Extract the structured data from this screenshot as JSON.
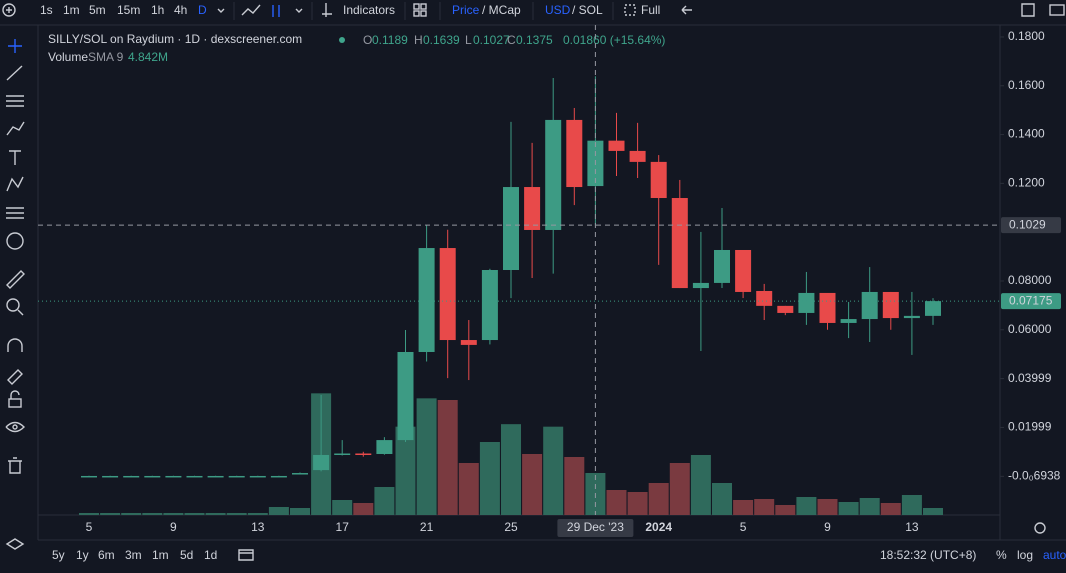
{
  "toolbar": {
    "intervals": [
      "1s",
      "1m",
      "5m",
      "15m",
      "1h",
      "4h",
      "D"
    ],
    "indicators": "Indicators",
    "price": "Price",
    "mcap": "/ MCap",
    "usd": "USD",
    "sol": "/ SOL",
    "full": "Full"
  },
  "legend": {
    "title": "SILLY/SOL on Raydium · 1D · dexscreener.com",
    "o": "O",
    "h": "H",
    "l": "L",
    "c": "C",
    "change": "0.01860 (+15.64%)",
    "volume": "Volume",
    "sma": "SMA 9",
    "sma_value": "4.842M"
  },
  "bottom": {
    "ranges": [
      "5y",
      "1y",
      "6m",
      "3m",
      "1m",
      "5d",
      "1d"
    ],
    "clock": "18:52:32 (UTC+8)",
    "scale_opts": [
      "%",
      "log",
      "auto"
    ]
  },
  "chart_data": {
    "type": "candlestick",
    "up_color": "#3d9b84",
    "down_color": "#e84a4a",
    "volume_up_color": "#2f6a5c",
    "volume_down_color": "#7a3a40",
    "x": [
      "2023-12-05",
      "2023-12-06",
      "2023-12-07",
      "2023-12-08",
      "2023-12-09",
      "2023-12-10",
      "2023-12-11",
      "2023-12-12",
      "2023-12-13",
      "2023-12-14",
      "2023-12-15",
      "2023-12-16",
      "2023-12-17",
      "2023-12-18",
      "2023-12-19",
      "2023-12-20",
      "2023-12-21",
      "2023-12-22",
      "2023-12-23",
      "2023-12-24",
      "2023-12-25",
      "2023-12-26",
      "2023-12-27",
      "2023-12-28",
      "2023-12-29",
      "2023-12-30",
      "2023-12-31",
      "2024-01-01",
      "2024-01-02",
      "2024-01-03",
      "2024-01-04",
      "2024-01-05",
      "2024-01-06",
      "2024-01-07",
      "2024-01-08",
      "2024-01-09",
      "2024-01-10",
      "2024-01-11",
      "2024-01-12",
      "2024-01-13",
      "2024-01-14"
    ],
    "open": [
      0.0001,
      0.0001,
      0.0001,
      0.0001,
      0.0001,
      0.0001,
      0.0001,
      0.0001,
      0.0001,
      0.0001,
      0.0013,
      0.0025,
      0.0091,
      0.0093,
      0.0091,
      0.0148,
      0.0509,
      0.0935,
      0.0558,
      0.0558,
      0.0845,
      0.1185,
      0.1009,
      0.146,
      0.1189,
      0.1375,
      0.1333,
      0.1288,
      0.114,
      0.0771,
      0.0792,
      0.0927,
      0.0759,
      0.0698,
      0.0669,
      0.0751,
      0.0628,
      0.0644,
      0.0755,
      0.0648,
      0.0657
    ],
    "high": [
      0.0002,
      0.0002,
      0.0002,
      0.0002,
      0.0002,
      0.0002,
      0.0002,
      0.0002,
      0.0002,
      0.0002,
      0.0015,
      0.0333,
      0.0148,
      0.01,
      0.016,
      0.0599,
      0.1029,
      0.101,
      0.064,
      0.085,
      0.1452,
      0.1366,
      0.1632,
      0.1509,
      0.1639,
      0.1489,
      0.1448,
      0.1316,
      0.1214,
      0.1001,
      0.1099,
      0.0927,
      0.0788,
      0.0698,
      0.0837,
      0.0751,
      0.0714,
      0.0857,
      0.0755,
      0.0755,
      0.073
    ],
    "low": [
      0.0001,
      0.0001,
      0.0001,
      0.0001,
      0.0001,
      0.0001,
      0.0001,
      0.0001,
      0.0001,
      0.0001,
      0.0012,
      0.002,
      0.0085,
      0.008,
      0.0088,
      0.014,
      0.047,
      0.0402,
      0.0394,
      0.054,
      0.073,
      0.0812,
      0.083,
      0.1111,
      0.1027,
      0.123,
      0.1222,
      0.0866,
      0.0771,
      0.0513,
      0.0771,
      0.073,
      0.064,
      0.066,
      0.062,
      0.06,
      0.0566,
      0.055,
      0.06,
      0.0497,
      0.062
    ],
    "close": [
      0.0001,
      0.0001,
      0.0001,
      0.0001,
      0.0001,
      0.0001,
      0.0001,
      0.0001,
      0.0001,
      0.0001,
      0.0013,
      0.0087,
      0.0093,
      0.0091,
      0.0148,
      0.0509,
      0.0935,
      0.0558,
      0.0538,
      0.0845,
      0.1185,
      0.1009,
      0.146,
      0.1185,
      0.1375,
      0.1333,
      0.1288,
      0.114,
      0.0771,
      0.0792,
      0.0927,
      0.0755,
      0.0698,
      0.0669,
      0.0751,
      0.0628,
      0.0644,
      0.0755,
      0.0648,
      0.0657,
      0.07175
    ],
    "volume": [
      0.24,
      0.24,
      0.24,
      0.24,
      0.24,
      0.24,
      0.24,
      0.24,
      0.24,
      0.96,
      0.84,
      14.6,
      1.8,
      1.44,
      3.36,
      10.6,
      14.0,
      13.8,
      6.24,
      8.76,
      10.9,
      7.32,
      10.6,
      6.96,
      5.04,
      3.0,
      2.76,
      3.84,
      6.24,
      7.2,
      3.84,
      1.8,
      1.92,
      1.2,
      2.16,
      1.92,
      1.56,
      2.04,
      1.44,
      2.4,
      0.84
    ],
    "ylim": [
      -0.0159,
      0.1849
    ],
    "volume_ylim": [
      0,
      15
    ],
    "grid": false,
    "yticks": [
      {
        "value": 0.18,
        "label": "0.1800"
      },
      {
        "value": 0.16,
        "label": "0.1600"
      },
      {
        "value": 0.14,
        "label": "0.1400"
      },
      {
        "value": 0.12,
        "label": "0.1200"
      },
      {
        "value": 0.08,
        "label": "0.08000"
      },
      {
        "value": 0.06,
        "label": "0.06000"
      },
      0.03999,
      0.01999,
      {
        "value": -6.938e-05,
        "label": "-0.0₀6938"
      }
    ],
    "xticks": [
      {
        "value": "2023-12-05",
        "label": "5"
      },
      {
        "value": "2023-12-09",
        "label": "9"
      },
      {
        "value": "2023-12-13",
        "label": "13"
      },
      {
        "value": "2023-12-17",
        "label": "17"
      },
      {
        "value": "2023-12-21",
        "label": "21"
      },
      {
        "value": "2023-12-25",
        "label": "25"
      },
      {
        "value": "2024-01-01",
        "label": "2024"
      },
      {
        "value": "2024-01-05",
        "label": "5"
      },
      {
        "value": "2024-01-09",
        "label": "9"
      },
      {
        "value": "2024-01-13",
        "label": "13"
      }
    ],
    "crosshair": {
      "x": "2023-12-29",
      "x_label": "29 Dec '23",
      "price": 0.1029
    },
    "last_price": {
      "value": 0.07175,
      "label": "0.07175"
    }
  }
}
